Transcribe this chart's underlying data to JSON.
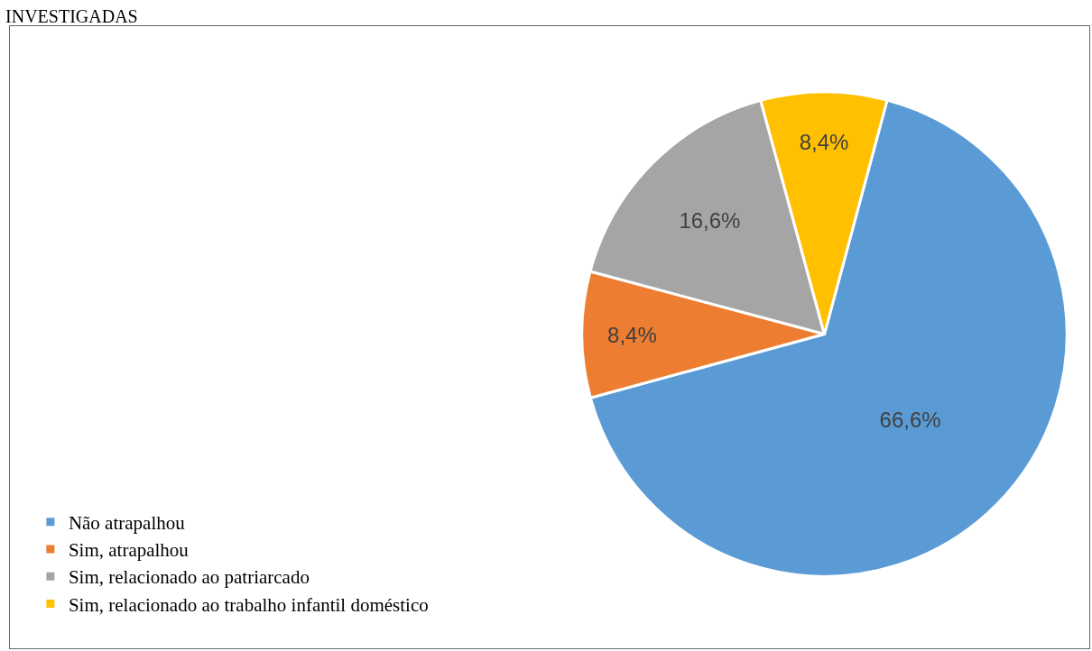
{
  "chart_data": {
    "type": "pie",
    "title": "INVESTIGADAS",
    "categories": [
      "Não atrapalhou",
      "Sim, atrapalhou",
      "Sim, relacionado ao patriarcado",
      "Sim, relacionado ao trabalho infantil doméstico"
    ],
    "values": [
      66.6,
      8.4,
      16.6,
      8.4
    ],
    "colors": [
      "#5b9bd5",
      "#ed7d31",
      "#a5a5a5",
      "#ffc000"
    ],
    "value_labels": [
      "66,6%",
      "8,4%",
      "16,6%",
      "8,4%"
    ],
    "legend": "bottom left"
  }
}
